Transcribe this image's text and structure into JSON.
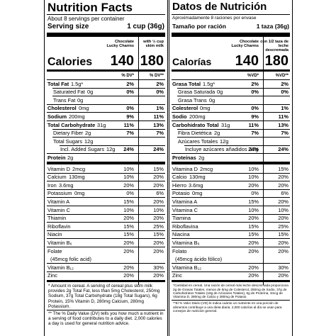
{
  "panels": [
    {
      "title": "Nutrition Facts",
      "servings": "About 8 servings per container",
      "serving_size_label": "Serving size",
      "serving_size": "1 cup (36g)",
      "column_1": "Chocolate Lucky Charms",
      "column_2": "with ½ cup skim milk",
      "calories_label": "Calories",
      "calories_1": 140,
      "calories_2": 180,
      "dv_header_1": "% DV*",
      "dv_header_2": "% DV**",
      "rows": [
        {
          "name": "Total Fat",
          "amount": "1.5g*",
          "dv_1": "2%",
          "dv_2": "2%"
        },
        {
          "name": "Saturated Fat",
          "amount": "0g",
          "dv_1": "0%",
          "dv_2": "0%"
        },
        {
          "name": "Trans Fat",
          "amount": "0g"
        },
        {
          "name": "Cholesterol",
          "amount": "0mg",
          "dv_1": "0%",
          "dv_2": "1%"
        },
        {
          "name": "Sodium",
          "amount": "200mg",
          "dv_1": "9%",
          "dv_2": "11%"
        },
        {
          "name": "Total Carbohydrate",
          "amount": "31g",
          "dv_1": "11%",
          "dv_2": "13%"
        },
        {
          "name": "Dietary Fiber",
          "amount": "2g",
          "dv_1": "7%",
          "dv_2": "7%"
        },
        {
          "name": "Total Sugars",
          "amount": "12g"
        },
        {
          "name": "Incl. Added Sugars",
          "amount": "12g",
          "dv_1": "24%",
          "dv_2": "24%"
        },
        {
          "name": "Protein",
          "amount": "2g"
        },
        {
          "name": "Vitamin D",
          "amount": "2mcg",
          "dv_1": "10%",
          "dv_2": "15%"
        },
        {
          "name": "Calcium",
          "amount": "130mg",
          "dv_1": "10%",
          "dv_2": "20%"
        },
        {
          "name": "Iron",
          "amount": "3.6mg",
          "dv_1": "20%",
          "dv_2": "20%"
        },
        {
          "name": "Potassium",
          "amount": "0mg",
          "dv_1": "0%",
          "dv_2": "6%"
        },
        {
          "name": "Vitamin A",
          "dv_1": "15%",
          "dv_2": "20%"
        },
        {
          "name": "Vitamin C",
          "dv_1": "10%",
          "dv_2": "10%"
        },
        {
          "name": "Thiamin",
          "dv_1": "20%",
          "dv_2": "20%"
        },
        {
          "name": "Riboflavin",
          "dv_1": "15%",
          "dv_2": "25%"
        },
        {
          "name": "Niacin",
          "dv_1": "15%",
          "dv_2": "15%"
        },
        {
          "name": "Vitamin B₆",
          "dv_1": "20%",
          "dv_2": "20%"
        },
        {
          "name": "Folate",
          "amount": "(45mcg folic acid)",
          "dv_1": "20%",
          "dv_2": "20%"
        },
        {
          "name": "Vitamin B₁₂",
          "dv_1": "20%",
          "dv_2": "30%"
        },
        {
          "name": "Zinc",
          "dv_1": "20%",
          "dv_2": "20%"
        }
      ],
      "footnotes": [
        "* Amount in cereal. A serving of cereal plus skim milk provides 2g Total Fat, less than 5mg Cholesterol, 250mg Sodium, 37g Total Carbohydrate (18g Total Sugars), 6g Protein, 15% Vitamin D, 280mg Calcium, 280mg Potassium.",
        "** The % Daily Value (DV) tells you how much a nutrient in a serving of food contributes to a daily diet. 2,000 calories a day is used for general nutrition advice."
      ]
    },
    {
      "title": "Datos de Nutrición",
      "servings": "Aproximadamente 8 raciones por envase",
      "serving_size_label": "Tamaño por ración",
      "serving_size": "1 taza (36g)",
      "column_1": "Chocolate Lucky Charms",
      "column_2": "con 1/2 taza de leche descremada",
      "calories_label": "Calorías",
      "calories_1": 140,
      "calories_2": 180,
      "dv_header_1": "%VD*",
      "dv_header_2": "%VD**",
      "rows": [
        {
          "name": "Grasa Total",
          "amount": "1.5g*",
          "dv_1": "2%",
          "dv_2": "2%"
        },
        {
          "name": "Grasa Saturada",
          "amount": "0g",
          "dv_1": "0%",
          "dv_2": "0%"
        },
        {
          "name": "Grasa Trans",
          "amount": "0g"
        },
        {
          "name": "Colesterol",
          "amount": "0mg",
          "dv_1": "0%",
          "dv_2": "1%"
        },
        {
          "name": "Sodio",
          "amount": "200mg",
          "dv_1": "9%",
          "dv_2": "11%"
        },
        {
          "name": "Carbohidrato Total",
          "amount": "31g",
          "dv_1": "11%",
          "dv_2": "13%"
        },
        {
          "name": "Fibra Dietética",
          "amount": "2g",
          "dv_1": "7%",
          "dv_2": "7%"
        },
        {
          "name": "Azúcares Totales",
          "amount": "12g"
        },
        {
          "name": "Incluye azúcares añadidos",
          "amount": "12g",
          "dv_1": "24%",
          "dv_2": "24%"
        },
        {
          "name": "Proteínas",
          "amount": "2g"
        },
        {
          "name": "Vitamina D",
          "amount": "2mcg",
          "dv_1": "10%",
          "dv_2": "15%"
        },
        {
          "name": "Calcio",
          "amount": "130mg",
          "dv_1": "10%",
          "dv_2": "20%"
        },
        {
          "name": "Hierro",
          "amount": "3.6mg",
          "dv_1": "20%",
          "dv_2": "20%"
        },
        {
          "name": "Potasio",
          "amount": "0mg",
          "dv_1": "0%",
          "dv_2": "6%"
        },
        {
          "name": "Vitamina A",
          "dv_1": "15%",
          "dv_2": "20%"
        },
        {
          "name": "Vitamina C",
          "dv_1": "10%",
          "dv_2": "10%"
        },
        {
          "name": "Tiamina",
          "dv_1": "20%",
          "dv_2": "20%"
        },
        {
          "name": "Riboflavina",
          "dv_1": "15%",
          "dv_2": "25%"
        },
        {
          "name": "Niacina",
          "dv_1": "15%",
          "dv_2": "15%"
        },
        {
          "name": "Vitamina B₆",
          "dv_1": "20%",
          "dv_2": "20%"
        },
        {
          "name": "Folato",
          "amount": "(45mcg ácido fólico)",
          "dv_1": "20%",
          "dv_2": "20%"
        },
        {
          "name": "Vitamina B₁₂",
          "dv_1": "20%",
          "dv_2": "30%"
        },
        {
          "name": "Zinc",
          "dv_1": "20%",
          "dv_2": "20%"
        }
      ],
      "footnotes": [
        "*Cantidad en cereal. Una ración de cereal más leche descremada proporciona 2g de Grasas Totales, menos de 5mg de Colesterol, 250mg de Sodio, 37g de Carbohidratos Totales (18g de Azúcares Totales), 6g de Proteína, 3mcg de Vitamina D, 280mg de Calcio y 280mg de Potasio.",
        "**El % Valor Diario (VD) le indica cuánto un nutriente en una porción de alimentos contribuye a una dieta diaria. 2,000 calorías al día se usan para consejos de nutrición general."
      ]
    }
  ]
}
